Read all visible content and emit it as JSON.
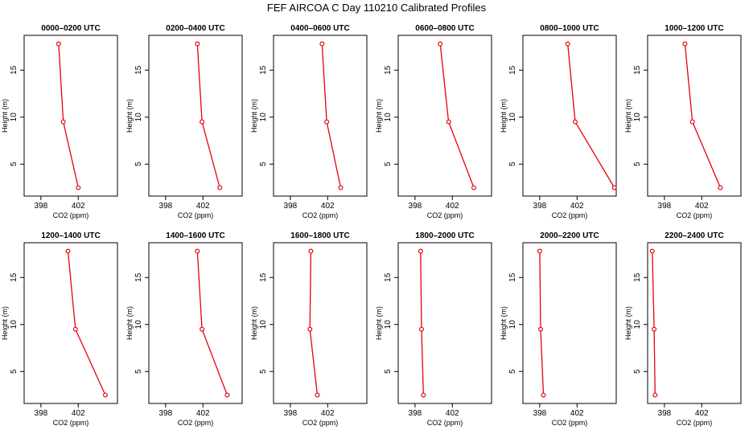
{
  "figure": {
    "title": "FEF AIRCOA C  Day 110210  Calibrated Profiles"
  },
  "style": {
    "line_color": "#e8000b",
    "axis_color": "#000000"
  },
  "chart_data": [
    {
      "type": "line",
      "title": "0000–0200 UTC",
      "xlabel": "CO2 (ppm)",
      "ylabel": "Height (m)",
      "xlim": [
        396.2,
        406.2
      ],
      "ylim": [
        1.6,
        18.7
      ],
      "xticks": [
        398,
        402
      ],
      "yticks": [
        5,
        10,
        15
      ],
      "x": [
        399.9,
        400.4,
        402.0
      ],
      "y": [
        17.8,
        9.5,
        2.5
      ]
    },
    {
      "type": "line",
      "title": "0200–0400 UTC",
      "xlabel": "CO2 (ppm)",
      "ylabel": "Height (m)",
      "xlim": [
        396.2,
        406.2
      ],
      "ylim": [
        1.6,
        18.7
      ],
      "xticks": [
        398,
        402
      ],
      "yticks": [
        5,
        10,
        15
      ],
      "x": [
        401.4,
        401.9,
        403.8
      ],
      "y": [
        17.8,
        9.5,
        2.5
      ]
    },
    {
      "type": "line",
      "title": "0400–0600 UTC",
      "xlabel": "CO2 (ppm)",
      "ylabel": "Height (m)",
      "xlim": [
        396.2,
        406.2
      ],
      "ylim": [
        1.6,
        18.7
      ],
      "xticks": [
        398,
        402
      ],
      "yticks": [
        5,
        10,
        15
      ],
      "x": [
        401.4,
        401.9,
        403.4
      ],
      "y": [
        17.8,
        9.5,
        2.5
      ]
    },
    {
      "type": "line",
      "title": "0600–0800 UTC",
      "xlabel": "CO2 (ppm)",
      "ylabel": "Height (m)",
      "xlim": [
        396.2,
        406.2
      ],
      "ylim": [
        1.6,
        18.7
      ],
      "xticks": [
        398,
        402
      ],
      "yticks": [
        5,
        10,
        15
      ],
      "x": [
        400.7,
        401.6,
        404.3
      ],
      "y": [
        17.8,
        9.5,
        2.5
      ]
    },
    {
      "type": "line",
      "title": "0800–1000 UTC",
      "xlabel": "CO2 (ppm)",
      "ylabel": "Height (m)",
      "xlim": [
        396.2,
        406.2
      ],
      "ylim": [
        1.6,
        18.7
      ],
      "xticks": [
        398,
        402
      ],
      "yticks": [
        5,
        10,
        15
      ],
      "x": [
        401.0,
        401.8,
        406.0
      ],
      "y": [
        17.8,
        9.5,
        2.5
      ]
    },
    {
      "type": "line",
      "title": "1000–1200 UTC",
      "xlabel": "CO2 (ppm)",
      "ylabel": "Height (m)",
      "xlim": [
        396.2,
        406.2
      ],
      "ylim": [
        1.6,
        18.7
      ],
      "xticks": [
        398,
        402
      ],
      "yticks": [
        5,
        10,
        15
      ],
      "x": [
        400.2,
        401.0,
        404.0
      ],
      "y": [
        17.8,
        9.5,
        2.5
      ]
    },
    {
      "type": "line",
      "title": "1200–1400 UTC",
      "xlabel": "CO2 (ppm)",
      "ylabel": "Height (m)",
      "xlim": [
        396.2,
        406.2
      ],
      "ylim": [
        1.6,
        18.7
      ],
      "xticks": [
        398,
        402
      ],
      "yticks": [
        5,
        10,
        15
      ],
      "x": [
        400.9,
        401.7,
        404.9
      ],
      "y": [
        17.8,
        9.5,
        2.5
      ]
    },
    {
      "type": "line",
      "title": "1400–1600 UTC",
      "xlabel": "CO2 (ppm)",
      "ylabel": "Height (m)",
      "xlim": [
        396.2,
        406.2
      ],
      "ylim": [
        1.6,
        18.7
      ],
      "xticks": [
        398,
        402
      ],
      "yticks": [
        5,
        10,
        15
      ],
      "x": [
        401.4,
        401.9,
        404.6
      ],
      "y": [
        17.8,
        9.5,
        2.5
      ]
    },
    {
      "type": "line",
      "title": "1600–1800 UTC",
      "xlabel": "CO2 (ppm)",
      "ylabel": "Height (m)",
      "xlim": [
        396.2,
        406.2
      ],
      "ylim": [
        1.6,
        18.7
      ],
      "xticks": [
        398,
        402
      ],
      "yticks": [
        5,
        10,
        15
      ],
      "x": [
        400.2,
        400.1,
        400.9
      ],
      "y": [
        17.8,
        9.5,
        2.5
      ]
    },
    {
      "type": "line",
      "title": "1800–2000 UTC",
      "xlabel": "CO2 (ppm)",
      "ylabel": "Height (m)",
      "xlim": [
        396.2,
        406.2
      ],
      "ylim": [
        1.6,
        18.7
      ],
      "xticks": [
        398,
        402
      ],
      "yticks": [
        5,
        10,
        15
      ],
      "x": [
        398.6,
        398.7,
        398.9
      ],
      "y": [
        17.8,
        9.5,
        2.5
      ]
    },
    {
      "type": "line",
      "title": "2000–2200 UTC",
      "xlabel": "CO2 (ppm)",
      "ylabel": "Height (m)",
      "xlim": [
        396.2,
        406.2
      ],
      "ylim": [
        1.6,
        18.7
      ],
      "xticks": [
        398,
        402
      ],
      "yticks": [
        5,
        10,
        15
      ],
      "x": [
        398.0,
        398.1,
        398.4
      ],
      "y": [
        17.8,
        9.5,
        2.5
      ]
    },
    {
      "type": "line",
      "title": "2200–2400 UTC",
      "xlabel": "CO2 (ppm)",
      "ylabel": "Height (m)",
      "xlim": [
        396.2,
        406.2
      ],
      "ylim": [
        1.6,
        18.7
      ],
      "xticks": [
        398,
        402
      ],
      "yticks": [
        5,
        10,
        15
      ],
      "x": [
        396.7,
        396.9,
        397.0
      ],
      "y": [
        17.8,
        9.5,
        2.5
      ]
    }
  ]
}
